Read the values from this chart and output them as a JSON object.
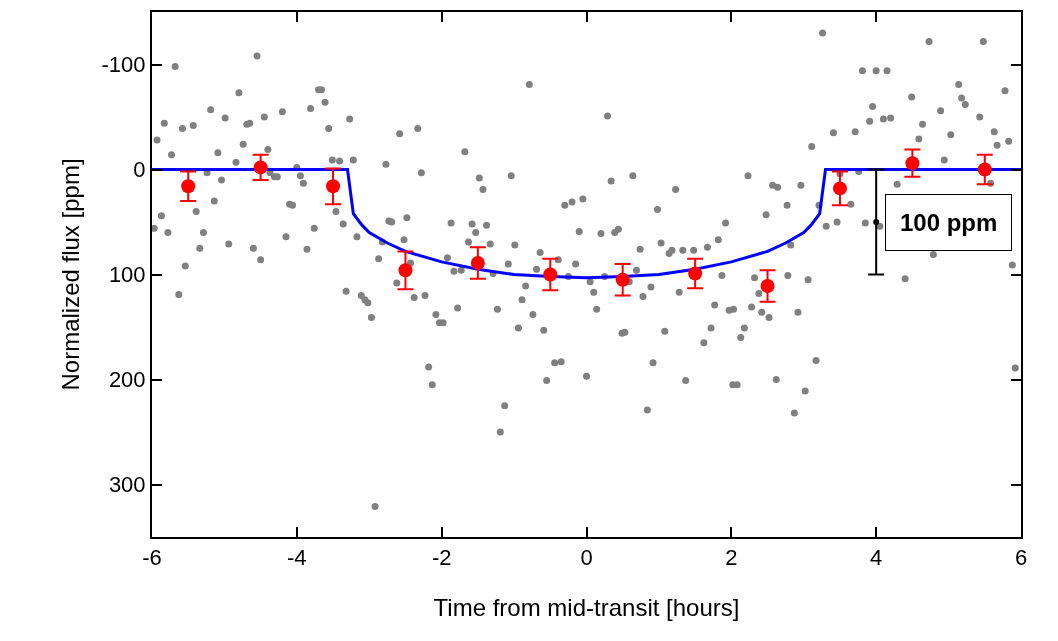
{
  "chart_data": {
    "type": "scatter",
    "xlabel": "Time from mid-transit [hours]",
    "ylabel": "Normalized flux [ppm]",
    "xlim": [
      -6,
      6
    ],
    "xticks": [
      -6,
      -4,
      -2,
      0,
      2,
      4,
      6
    ],
    "ylim": [
      350,
      -150
    ],
    "yticks": [
      -100,
      0,
      100,
      200,
      300
    ],
    "series": [
      {
        "marker": "circle",
        "color": "#808080",
        "x": [
          -5.68,
          -4.55,
          -4.8,
          -5.19,
          -4.99,
          -5.83,
          -5.58,
          -5.43,
          -4.69,
          -4.65,
          -4.45,
          -4.2,
          -3.81,
          -3.7,
          -3.66,
          -3.61,
          -3.56,
          -3.27,
          -5.93,
          -5.73,
          -5.09,
          -4.74,
          -4.4,
          -4.84,
          -5.24,
          -5.04,
          -4.37,
          -4.31,
          -4.27,
          -4.0,
          -3.95,
          -3.91,
          -3.51,
          -3.41,
          -3.22,
          -2.77,
          -2.58,
          -2.33,
          -2.28,
          -5.87,
          -5.97,
          -5.39,
          -5.78,
          -5.29,
          -5.34,
          -5.14,
          -4.94,
          -4.6,
          -4.5,
          -5.54,
          -5.63,
          -4.1,
          -4.06,
          -4.15,
          -3.86,
          -3.76,
          -3.46,
          -3.36,
          -3.17,
          -2.73,
          -2.69,
          -2.48,
          -2.52,
          -2.82,
          -2.87,
          -2.43,
          -2.62,
          -3.32,
          -3.11,
          -3.06,
          -3.02,
          -2.97,
          -2.38,
          -2.23,
          -2.08,
          -2.03,
          -2.18,
          -2.13,
          -2.92,
          -0.79,
          -1.68,
          -1.48,
          -1.43,
          -1.04,
          0.29,
          0.34,
          0.64,
          1.23,
          0.98,
          -0.3,
          -0.2,
          -0.05,
          -1.87,
          -1.58,
          -1.38,
          -1.53,
          -1.63,
          -1.33,
          -0.99,
          -1.92,
          -1.83,
          -1.73,
          -1.29,
          -1.08,
          -0.69,
          -0.64,
          -0.39,
          -0.25,
          -0.15,
          -0.1,
          0.2,
          0.39,
          0.44,
          0.25,
          0.05,
          0.1,
          0.59,
          0.69,
          0.74,
          0.78,
          0.89,
          1.03,
          1.14,
          1.18,
          1.33,
          1.48,
          1.28,
          1.67,
          1.82,
          1.92,
          1.87,
          1.77,
          1.97,
          1.72,
          1.62,
          1.08,
          0.92,
          1.37,
          0.84,
          2.02,
          -0.89,
          -0.74,
          -1.23,
          -1.78,
          -1.98,
          -0.94,
          -0.59,
          -0.84,
          -0.44,
          -0.35,
          -0.55,
          0.0,
          0.14,
          0.49,
          0.53,
          -1.13,
          -1.19,
          3.26,
          4.73,
          5.48,
          3.81,
          4.0,
          4.15,
          5.14,
          5.18,
          5.23,
          5.78,
          4.49,
          3.95,
          4.89,
          3.91,
          4.1,
          4.2,
          5.43,
          4.64,
          3.41,
          3.71,
          5.03,
          5.63,
          5.83,
          5.67,
          4.59,
          3.11,
          4.94,
          2.23,
          2.57,
          2.64,
          2.96,
          4.29,
          3.76,
          3.5,
          5.58,
          2.77,
          2.48,
          3.21,
          3.65,
          3.31,
          3.46,
          3.85,
          4.05,
          2.82,
          4.79,
          5.88,
          4.4,
          2.32,
          2.78,
          2.38,
          3.06,
          2.03,
          2.28,
          2.42,
          2.52,
          2.92,
          2.18,
          2.13,
          3.17,
          2.62,
          2.08,
          3.02,
          2.87,
          5.92
        ],
        "values": [
          -98,
          -108,
          -73,
          -57,
          -49,
          -44,
          -39,
          -42,
          -43,
          -44,
          -50,
          -55,
          -58,
          -76,
          -76,
          -64,
          -39,
          -48,
          -28,
          -14,
          -16,
          -24,
          -19,
          -7,
          3,
          10,
          3,
          7,
          7,
          -2,
          6,
          13,
          -9,
          -8,
          -9,
          -5,
          -34,
          -39,
          3,
          44,
          56,
          40,
          60,
          60,
          75,
          30,
          71,
          75,
          86,
          92,
          119,
          33,
          34,
          64,
          76,
          56,
          40,
          52,
          64,
          49,
          50,
          46,
          67,
          69,
          85,
          89,
          108,
          116,
          120,
          124,
          127,
          141,
          122,
          120,
          138,
          146,
          188,
          205,
          321,
          -81,
          -17,
          8,
          19,
          6,
          -51,
          11,
          6,
          19,
          38,
          34,
          31,
          28,
          51,
          52,
          53,
          60,
          69,
          71,
          72,
          84,
          97,
          96,
          99,
          90,
          95,
          79,
          86,
          102,
          90,
          59,
          61,
          60,
          57,
          102,
          107,
          117,
          107,
          96,
          76,
          121,
          112,
          70,
          80,
          77,
          77,
          77,
          117,
          74,
          67,
          51,
          101,
          129,
          134,
          151,
          165,
          154,
          184,
          201,
          229,
          205,
          124,
          138,
          133,
          132,
          146,
          151,
          153,
          111,
          184,
          183,
          201,
          197,
          133,
          156,
          155,
          225,
          250,
          -130,
          -122,
          -122,
          -94,
          -94,
          -94,
          -81,
          -68,
          -62,
          -75,
          -69,
          -60,
          -56,
          -46,
          -48,
          -49,
          -50,
          -43,
          -35,
          -36,
          -33,
          -36,
          -27,
          -23,
          -29,
          -22,
          -9,
          6,
          15,
          17,
          15,
          14,
          2,
          4,
          13,
          34,
          43,
          34,
          33,
          54,
          50,
          51,
          54,
          72,
          81,
          91,
          104,
          103,
          101,
          118,
          105,
          133,
          131,
          136,
          141,
          136,
          151,
          160,
          182,
          200,
          205,
          211,
          232,
          189
        ]
      },
      {
        "type": "line",
        "marker": "none",
        "color": "#0000ff",
        "x": [
          -6,
          -3.3,
          -3.22,
          -3.1,
          -3.0,
          -2.75,
          -2.5,
          -2.0,
          -1.5,
          -1.0,
          -0.5,
          0,
          0.5,
          1.0,
          1.5,
          2.0,
          2.5,
          2.75,
          3.0,
          3.1,
          3.22,
          3.3,
          6
        ],
        "values": [
          0,
          0,
          42,
          53,
          60,
          70,
          78,
          88,
          95,
          100,
          102,
          103,
          102,
          100,
          95,
          88,
          78,
          70,
          60,
          53,
          42,
          0,
          0
        ]
      },
      {
        "marker": "circle",
        "color": "#ff0000",
        "x": [
          -5.5,
          -4.5,
          -3.5,
          -2.5,
          -1.5,
          -0.5,
          0.5,
          1.5,
          2.5,
          3.5,
          4.5,
          5.5
        ],
        "values": [
          16,
          -2,
          16,
          96,
          89,
          100,
          105,
          99,
          111,
          18,
          -6,
          0
        ],
        "errors": [
          14,
          12,
          17,
          18,
          15,
          15,
          15,
          14,
          15,
          16,
          13,
          14
        ]
      },
      {
        "marker": "none",
        "color": "#000000",
        "x": [
          4
        ],
        "values": [
          50
        ],
        "errors": [
          50
        ]
      }
    ],
    "annotations": [
      "100 ppm"
    ]
  }
}
